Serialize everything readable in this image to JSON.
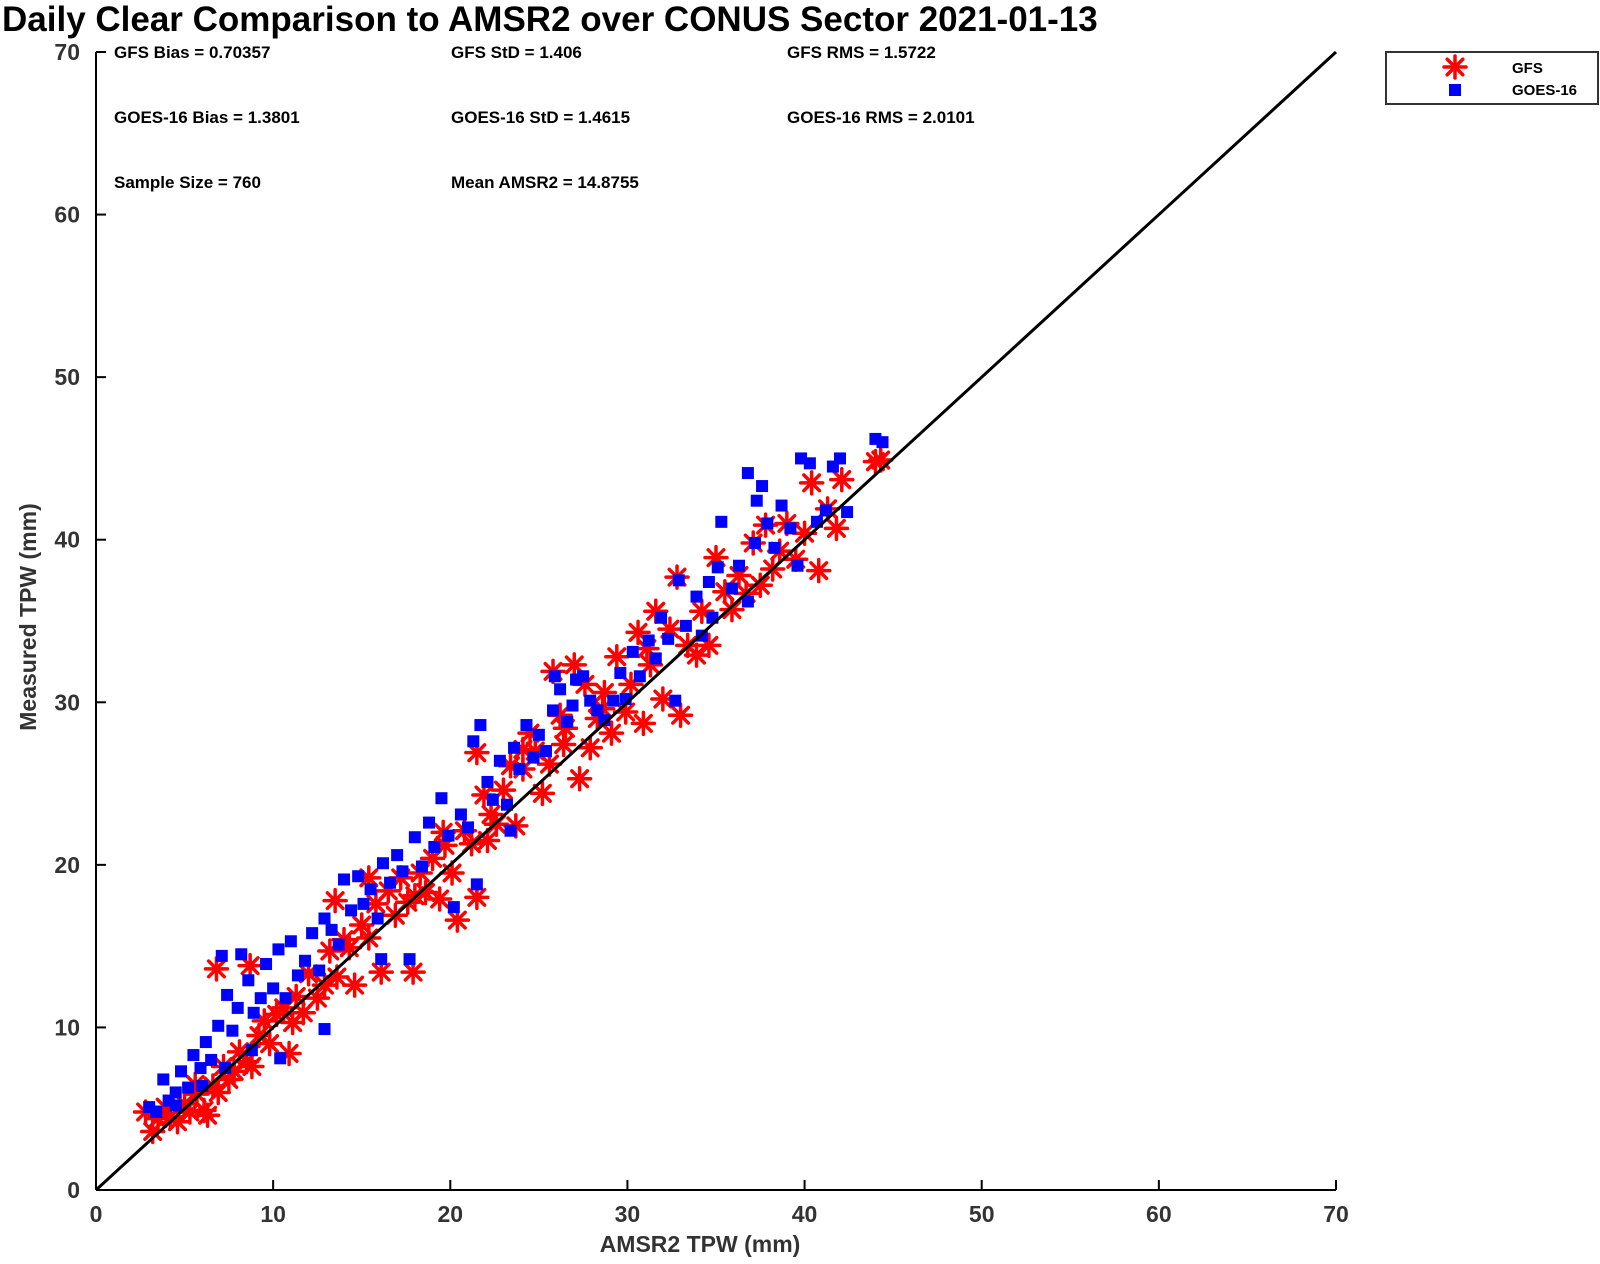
{
  "chart_data": {
    "type": "scatter",
    "title": "Daily Clear Comparison to AMSR2 over CONUS Sector 2021-01-13",
    "xlabel": "AMSR2 TPW (mm)",
    "ylabel": "Measured TPW (mm)",
    "xlim": [
      0,
      70
    ],
    "ylim": [
      0,
      70
    ],
    "x_ticks": [
      "0",
      "10",
      "20",
      "30",
      "40",
      "50",
      "60",
      "70"
    ],
    "y_ticks": [
      "0",
      "10",
      "20",
      "30",
      "40",
      "50",
      "60",
      "70"
    ],
    "grid": false,
    "legend_position": "top-right, outside plot area",
    "reference_line": {
      "type": "one-to-one",
      "from": [
        0,
        0
      ],
      "to": [
        70,
        70
      ],
      "color": "#000000"
    },
    "annotations": [
      [
        "GFS Bias = 0.70357",
        "GFS StD = 1.406",
        "GFS RMS = 1.5722"
      ],
      [
        "GOES-16 Bias = 1.3801",
        "GOES-16 StD = 1.4615",
        "GOES-16 RMS = 2.0101"
      ],
      [
        "Sample Size = 760",
        "Mean AMSR2 = 14.8755",
        ""
      ]
    ],
    "series": [
      {
        "name": "GFS",
        "marker": "asterisk",
        "color": "#ff0000",
        "points": [
          [
            2.8,
            4.8
          ],
          [
            3.2,
            3.6
          ],
          [
            3.5,
            4.4
          ],
          [
            3.9,
            5.1
          ],
          [
            4.2,
            4.5
          ],
          [
            4.6,
            4.2
          ],
          [
            5.0,
            5.3
          ],
          [
            5.3,
            4.8
          ],
          [
            5.7,
            5.9
          ],
          [
            6.1,
            4.9
          ],
          [
            6.3,
            4.6
          ],
          [
            6.6,
            6.4
          ],
          [
            6.9,
            6.0
          ],
          [
            7.2,
            7.6
          ],
          [
            7.5,
            6.8
          ],
          [
            7.8,
            7.3
          ],
          [
            8.1,
            8.5
          ],
          [
            8.5,
            7.9
          ],
          [
            8.8,
            7.6
          ],
          [
            9.2,
            9.5
          ],
          [
            9.5,
            10.4
          ],
          [
            9.8,
            9.0
          ],
          [
            10.2,
            10.8
          ],
          [
            10.6,
            11.2
          ],
          [
            10.9,
            8.4
          ],
          [
            11.3,
            11.9
          ],
          [
            11.7,
            10.9
          ],
          [
            12.0,
            13.3
          ],
          [
            12.5,
            11.8
          ],
          [
            12.9,
            12.6
          ],
          [
            13.2,
            14.7
          ],
          [
            13.6,
            13.1
          ],
          [
            14.0,
            15.4
          ],
          [
            14.3,
            14.9
          ],
          [
            14.6,
            12.6
          ],
          [
            15.0,
            16.3
          ],
          [
            15.4,
            15.5
          ],
          [
            15.8,
            17.6
          ],
          [
            16.1,
            13.4
          ],
          [
            16.5,
            18.4
          ],
          [
            16.9,
            16.9
          ],
          [
            17.2,
            19.2
          ],
          [
            17.6,
            17.7
          ],
          [
            17.9,
            13.4
          ],
          [
            18.3,
            19.5
          ],
          [
            18.6,
            18.3
          ],
          [
            19.0,
            20.4
          ],
          [
            19.4,
            17.9
          ],
          [
            19.7,
            21.2
          ],
          [
            20.1,
            19.5
          ],
          [
            20.4,
            16.6
          ],
          [
            20.8,
            22.1
          ],
          [
            21.2,
            21.3
          ],
          [
            21.5,
            18.0
          ],
          [
            21.5,
            26.9
          ],
          [
            21.9,
            24.3
          ],
          [
            22.3,
            23.1
          ],
          [
            22.6,
            22.5
          ],
          [
            23.0,
            24.6
          ],
          [
            23.4,
            26.1
          ],
          [
            23.7,
            22.4
          ],
          [
            24.1,
            25.9
          ],
          [
            24.5,
            28.1
          ],
          [
            24.8,
            27.0
          ],
          [
            25.2,
            24.4
          ],
          [
            25.6,
            26.2
          ],
          [
            25.8,
            31.9
          ],
          [
            26.2,
            29.2
          ],
          [
            26.5,
            28.4
          ],
          [
            27.0,
            32.3
          ],
          [
            27.3,
            25.3
          ],
          [
            27.6,
            31.1
          ],
          [
            27.9,
            27.2
          ],
          [
            28.3,
            29.0
          ],
          [
            28.7,
            30.6
          ],
          [
            29.1,
            28.1
          ],
          [
            29.4,
            32.8
          ],
          [
            29.9,
            29.4
          ],
          [
            30.2,
            31.1
          ],
          [
            30.6,
            34.3
          ],
          [
            30.9,
            28.7
          ],
          [
            31.3,
            32.3
          ],
          [
            31.6,
            35.6
          ],
          [
            32.0,
            30.2
          ],
          [
            32.4,
            34.5
          ],
          [
            32.8,
            37.7
          ],
          [
            33.0,
            29.2
          ],
          [
            33.4,
            33.5
          ],
          [
            33.9,
            32.9
          ],
          [
            34.2,
            35.6
          ],
          [
            34.6,
            33.5
          ],
          [
            35.0,
            38.9
          ],
          [
            35.5,
            36.8
          ],
          [
            35.9,
            35.7
          ],
          [
            36.3,
            37.8
          ],
          [
            36.7,
            36.7
          ],
          [
            37.1,
            39.8
          ],
          [
            37.5,
            37.2
          ],
          [
            37.8,
            40.9
          ],
          [
            38.2,
            38.2
          ],
          [
            38.6,
            39.3
          ],
          [
            39.0,
            41.0
          ],
          [
            39.5,
            38.8
          ],
          [
            40.0,
            40.4
          ],
          [
            40.4,
            43.5
          ],
          [
            40.8,
            38.1
          ],
          [
            41.3,
            41.9
          ],
          [
            41.8,
            40.7
          ],
          [
            42.1,
            43.7
          ],
          [
            44.0,
            44.8
          ],
          [
            44.3,
            44.9
          ],
          [
            5.6,
            6.5
          ],
          [
            6.8,
            13.6
          ],
          [
            8.7,
            13.8
          ],
          [
            11.1,
            10.3
          ],
          [
            13.5,
            17.8
          ],
          [
            15.4,
            19.2
          ],
          [
            18.0,
            18.1
          ],
          [
            19.6,
            22.0
          ],
          [
            22.1,
            21.5
          ],
          [
            24.1,
            27.1
          ],
          [
            26.4,
            27.4
          ],
          [
            28.6,
            29.6
          ],
          [
            31.1,
            33.3
          ]
        ]
      },
      {
        "name": "GOES-16",
        "marker": "square",
        "color": "#0000ff",
        "points": [
          [
            3.0,
            5.1
          ],
          [
            3.4,
            4.8
          ],
          [
            3.8,
            6.8
          ],
          [
            4.1,
            5.5
          ],
          [
            4.5,
            6.0
          ],
          [
            4.8,
            7.3
          ],
          [
            5.2,
            6.3
          ],
          [
            5.5,
            8.3
          ],
          [
            5.9,
            7.5
          ],
          [
            6.2,
            9.1
          ],
          [
            6.5,
            8.0
          ],
          [
            6.9,
            10.1
          ],
          [
            7.1,
            14.4
          ],
          [
            7.4,
            12.0
          ],
          [
            7.7,
            9.8
          ],
          [
            8.0,
            11.2
          ],
          [
            8.2,
            14.5
          ],
          [
            8.6,
            12.9
          ],
          [
            8.9,
            10.9
          ],
          [
            9.3,
            11.8
          ],
          [
            9.6,
            13.9
          ],
          [
            10.0,
            12.4
          ],
          [
            10.3,
            14.8
          ],
          [
            10.7,
            11.8
          ],
          [
            11.0,
            15.3
          ],
          [
            11.4,
            13.2
          ],
          [
            11.8,
            14.1
          ],
          [
            12.2,
            15.8
          ],
          [
            12.6,
            13.5
          ],
          [
            12.9,
            16.7
          ],
          [
            13.3,
            16.0
          ],
          [
            13.7,
            15.1
          ],
          [
            14.0,
            19.1
          ],
          [
            14.4,
            17.2
          ],
          [
            14.8,
            19.3
          ],
          [
            15.1,
            17.6
          ],
          [
            15.5,
            18.5
          ],
          [
            15.9,
            16.7
          ],
          [
            16.2,
            20.1
          ],
          [
            16.6,
            18.9
          ],
          [
            17.0,
            20.6
          ],
          [
            17.3,
            19.6
          ],
          [
            17.7,
            14.2
          ],
          [
            18.0,
            21.7
          ],
          [
            18.4,
            19.9
          ],
          [
            18.8,
            22.6
          ],
          [
            19.1,
            21.1
          ],
          [
            19.5,
            24.1
          ],
          [
            19.9,
            21.8
          ],
          [
            20.2,
            17.4
          ],
          [
            20.6,
            23.1
          ],
          [
            21.0,
            22.3
          ],
          [
            21.3,
            27.6
          ],
          [
            21.5,
            18.8
          ],
          [
            21.7,
            28.6
          ],
          [
            22.1,
            25.1
          ],
          [
            22.4,
            24.0
          ],
          [
            22.8,
            26.4
          ],
          [
            23.2,
            23.7
          ],
          [
            23.6,
            27.2
          ],
          [
            23.9,
            25.9
          ],
          [
            24.3,
            28.6
          ],
          [
            24.7,
            26.6
          ],
          [
            25.0,
            28.0
          ],
          [
            25.4,
            27.0
          ],
          [
            25.8,
            29.5
          ],
          [
            25.9,
            31.6
          ],
          [
            26.2,
            30.8
          ],
          [
            26.6,
            28.8
          ],
          [
            26.9,
            29.8
          ],
          [
            27.1,
            31.4
          ],
          [
            27.5,
            31.6
          ],
          [
            27.9,
            30.1
          ],
          [
            28.3,
            29.5
          ],
          [
            28.7,
            28.9
          ],
          [
            29.2,
            30.1
          ],
          [
            29.6,
            31.8
          ],
          [
            29.9,
            30.2
          ],
          [
            30.3,
            33.1
          ],
          [
            30.7,
            31.6
          ],
          [
            31.2,
            33.8
          ],
          [
            31.6,
            32.7
          ],
          [
            31.9,
            35.2
          ],
          [
            32.3,
            33.9
          ],
          [
            32.7,
            30.1
          ],
          [
            32.9,
            37.5
          ],
          [
            33.3,
            34.7
          ],
          [
            33.9,
            36.5
          ],
          [
            34.2,
            34.1
          ],
          [
            34.8,
            35.2
          ],
          [
            35.1,
            38.3
          ],
          [
            35.3,
            41.1
          ],
          [
            35.9,
            37.0
          ],
          [
            36.3,
            38.4
          ],
          [
            36.8,
            36.2
          ],
          [
            37.2,
            39.8
          ],
          [
            37.3,
            42.4
          ],
          [
            37.6,
            43.3
          ],
          [
            37.9,
            41.0
          ],
          [
            38.3,
            39.5
          ],
          [
            38.7,
            42.1
          ],
          [
            39.2,
            40.7
          ],
          [
            39.6,
            38.4
          ],
          [
            39.8,
            45.0
          ],
          [
            40.3,
            44.7
          ],
          [
            40.7,
            41.1
          ],
          [
            41.2,
            41.8
          ],
          [
            41.6,
            44.5
          ],
          [
            42.0,
            45.0
          ],
          [
            42.4,
            41.7
          ],
          [
            44.0,
            46.2
          ],
          [
            44.4,
            46.0
          ],
          [
            36.8,
            44.1
          ],
          [
            34.6,
            37.4
          ],
          [
            23.4,
            22.1
          ],
          [
            16.1,
            14.2
          ],
          [
            12.9,
            9.9
          ],
          [
            10.4,
            8.1
          ],
          [
            8.8,
            8.6
          ],
          [
            7.3,
            7.5
          ],
          [
            6.0,
            6.4
          ],
          [
            4.5,
            5.2
          ]
        ]
      }
    ]
  }
}
